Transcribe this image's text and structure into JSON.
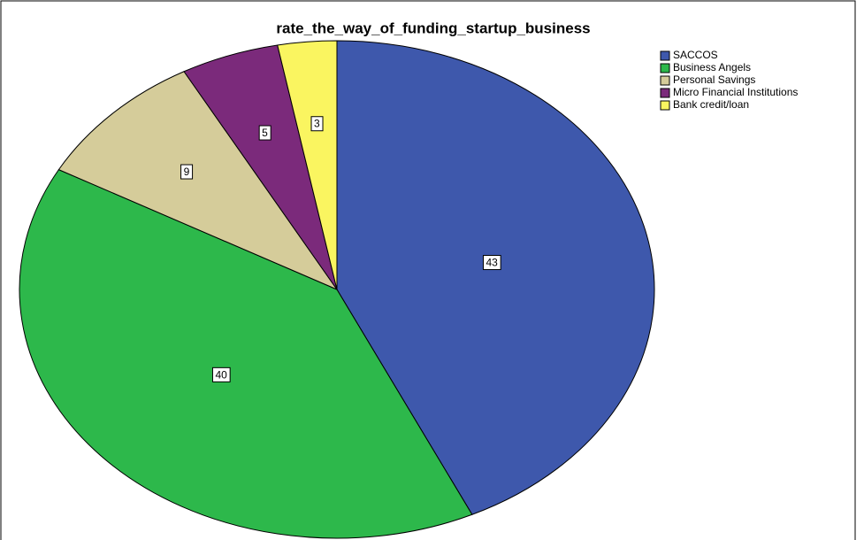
{
  "chart_data": {
    "type": "pie",
    "title": "rate_the_way_of_funding_startup_business",
    "categories": [
      "SACCOS",
      "Business Angels",
      "Personal Savings",
      "Micro Financial Institutions",
      "Bank credit/loan"
    ],
    "values": [
      43,
      40,
      9,
      5,
      3
    ],
    "colors": [
      "#3e58ac",
      "#2db84b",
      "#d5cc9a",
      "#7b2a7b",
      "#faf560"
    ],
    "legend": "top-right"
  }
}
